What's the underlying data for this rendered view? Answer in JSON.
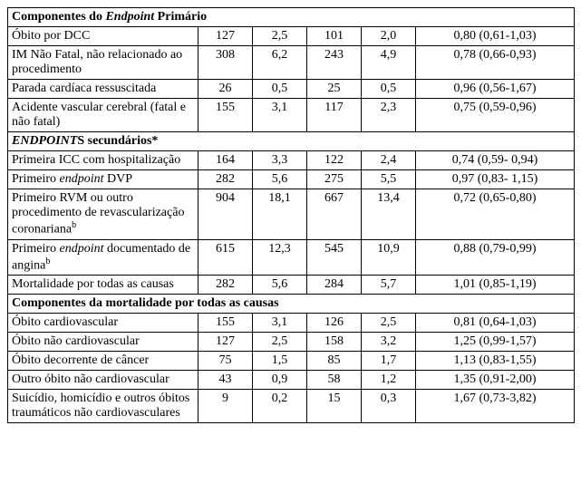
{
  "sections": [
    {
      "title_html": "Componentes do <em class='it'>Endpoint</em> Primário",
      "rows": [
        {
          "label_html": "Óbito por DCC",
          "n1": "127",
          "p1": "2,5",
          "n2": "101",
          "p2": "2,0",
          "ci": "0,80 (0,61-1,03)"
        },
        {
          "label_html": "IM Não Fatal, não relacionado ao procedimento",
          "n1": "308",
          "p1": "6,2",
          "n2": "243",
          "p2": "4,9",
          "ci": "0,78 (0,66-0,93)"
        },
        {
          "label_html": "Parada cardíaca ressuscitada",
          "n1": "26",
          "p1": "0,5",
          "n2": "25",
          "p2": "0,5",
          "ci": "0,96 (0,56-1,67)"
        },
        {
          "label_html": "Acidente vascular cerebral (fatal e não fatal)",
          "n1": "155",
          "p1": "3,1",
          "n2": "117",
          "p2": "2,3",
          "ci": "0,75 (0,59-0,96)"
        }
      ]
    },
    {
      "title_html": "<em class='it'>ENDPOINT</em>S secundários*",
      "rows": [
        {
          "label_html": "Primeira ICC com hospitalização",
          "n1": "164",
          "p1": "3,3",
          "n2": "122",
          "p2": "2,4",
          "ci": "0,74 (0,59- 0,94)"
        },
        {
          "label_html": "Primeiro <em class='it'>endpoint</em> DVP",
          "n1": "282",
          "p1": "5,6",
          "n2": "275",
          "p2": "5,5",
          "ci": "0,97 (0,83- 1,15)"
        },
        {
          "label_html": "Primeiro RVM ou outro procedimento de revascularização coronariana<sup>b</sup>",
          "n1": "904",
          "p1": "18,1",
          "n2": "667",
          "p2": "13,4",
          "ci": "0,72 (0,65-0,80)"
        },
        {
          "label_html": "Primeiro <em class='it'>endpoint</em> documentado de angina<sup>b</sup>",
          "n1": "615",
          "p1": "12,3",
          "n2": "545",
          "p2": "10,9",
          "ci": "0,88 (0,79-0,99)"
        },
        {
          "label_html": "Mortalidade por todas as causas",
          "n1": "282",
          "p1": "5,6",
          "n2": "284",
          "p2": "5,7",
          "ci": "1,01 (0,85-1,19)"
        }
      ]
    },
    {
      "title_html": "Componentes da mortalidade por todas as causas",
      "rows": [
        {
          "label_html": "Óbito cardiovascular",
          "n1": "155",
          "p1": "3,1",
          "n2": "126",
          "p2": "2,5",
          "ci": "0,81 (0,64-1,03)"
        },
        {
          "label_html": "Óbito não cardiovascular",
          "n1": "127",
          "p1": "2,5",
          "n2": "158",
          "p2": "3,2",
          "ci": "1,25 (0,99-1,57)"
        },
        {
          "label_html": "Óbito decorrente de câncer",
          "n1": "75",
          "p1": "1,5",
          "n2": "85",
          "p2": "1,7",
          "ci": "1,13 (0,83-1,55)"
        },
        {
          "label_html": "Outro óbito não cardiovascular",
          "n1": "43",
          "p1": "0,9",
          "n2": "58",
          "p2": "1,2",
          "ci": "1,35 (0,91-2,00)"
        },
        {
          "label_html": "Suicídio, homicídio e outros óbitos traumáticos não cardiovasculares",
          "n1": "9",
          "p1": "0,2",
          "n2": "15",
          "p2": "0,3",
          "ci": "1,67 (0,73-3,82)"
        }
      ]
    }
  ],
  "col_widths": [
    "210px",
    "60px",
    "60px",
    "60px",
    "60px",
    "175px"
  ]
}
